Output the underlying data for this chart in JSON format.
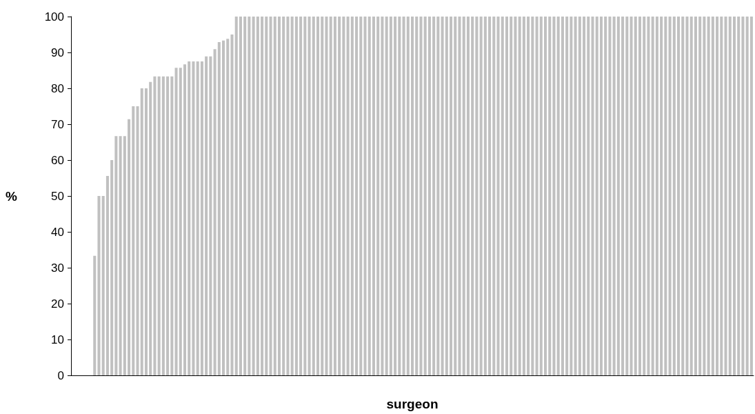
{
  "chart_data": {
    "type": "bar",
    "xlabel": "surgeon",
    "ylabel": "%",
    "color": "#c0c0c0",
    "grid": false,
    "categories": [
      null,
      null,
      null,
      null,
      null,
      null,
      null,
      null,
      null,
      null,
      null,
      null,
      null,
      null,
      null,
      null,
      null,
      null,
      null,
      null,
      null,
      null,
      null,
      null,
      null,
      null,
      null,
      null,
      null,
      null,
      null,
      null,
      null,
      null,
      null,
      null,
      null,
      null,
      null,
      null,
      null,
      null,
      null,
      null,
      null,
      null,
      null,
      null,
      null,
      null,
      null,
      null,
      null,
      null,
      null,
      null,
      null,
      null,
      null,
      null,
      null,
      null,
      null,
      null,
      null,
      null,
      null,
      null,
      null,
      null,
      null,
      null,
      null,
      null,
      null,
      null,
      null,
      null,
      null,
      null,
      null,
      null,
      null,
      null,
      null,
      null,
      null,
      null,
      null,
      null,
      null,
      null,
      null,
      null,
      null,
      null,
      null,
      null,
      null,
      null,
      null,
      null,
      null,
      null,
      null,
      null,
      null,
      null,
      null,
      null,
      null,
      null,
      null,
      null,
      null,
      null,
      null,
      null,
      null,
      null,
      null,
      null,
      null,
      null,
      null,
      null,
      null,
      null,
      null,
      null,
      null,
      null,
      null,
      null,
      null,
      null,
      null,
      null,
      null,
      null,
      null,
      null,
      null,
      null,
      null,
      null,
      null,
      null,
      null,
      null,
      null,
      null,
      null,
      null,
      null,
      null,
      null,
      null,
      null
    ],
    "values": [
      0,
      0,
      0,
      0,
      0,
      33.3,
      50,
      50,
      55.6,
      60,
      66.7,
      66.7,
      66.7,
      71.4,
      75,
      75,
      80,
      80,
      81.8,
      83.3,
      83.3,
      83.3,
      83.3,
      83.3,
      85.7,
      85.7,
      86.7,
      87.5,
      87.5,
      87.5,
      87.5,
      88.9,
      88.9,
      90.9,
      92.9,
      93.3,
      93.8,
      95,
      100,
      100,
      100,
      100,
      100,
      100,
      100,
      100,
      100,
      100,
      100,
      100,
      100,
      100,
      100,
      100,
      100,
      100,
      100,
      100,
      100,
      100,
      100,
      100,
      100,
      100,
      100,
      100,
      100,
      100,
      100,
      100,
      100,
      100,
      100,
      100,
      100,
      100,
      100,
      100,
      100,
      100,
      100,
      100,
      100,
      100,
      100,
      100,
      100,
      100,
      100,
      100,
      100,
      100,
      100,
      100,
      100,
      100,
      100,
      100,
      100,
      100,
      100,
      100,
      100,
      100,
      100,
      100,
      100,
      100,
      100,
      100,
      100,
      100,
      100,
      100,
      100,
      100,
      100,
      100,
      100,
      100,
      100,
      100,
      100,
      100,
      100,
      100,
      100,
      100,
      100,
      100,
      100,
      100,
      100,
      100,
      100,
      100,
      100,
      100,
      100,
      100,
      100,
      100,
      100,
      100,
      100,
      100,
      100,
      100,
      100,
      100,
      100,
      100,
      100,
      100,
      100,
      100,
      100,
      100,
      100
    ],
    "ylim": [
      0,
      100
    ],
    "yticks": [
      0,
      10,
      20,
      30,
      40,
      50,
      60,
      70,
      80,
      90,
      100
    ]
  }
}
